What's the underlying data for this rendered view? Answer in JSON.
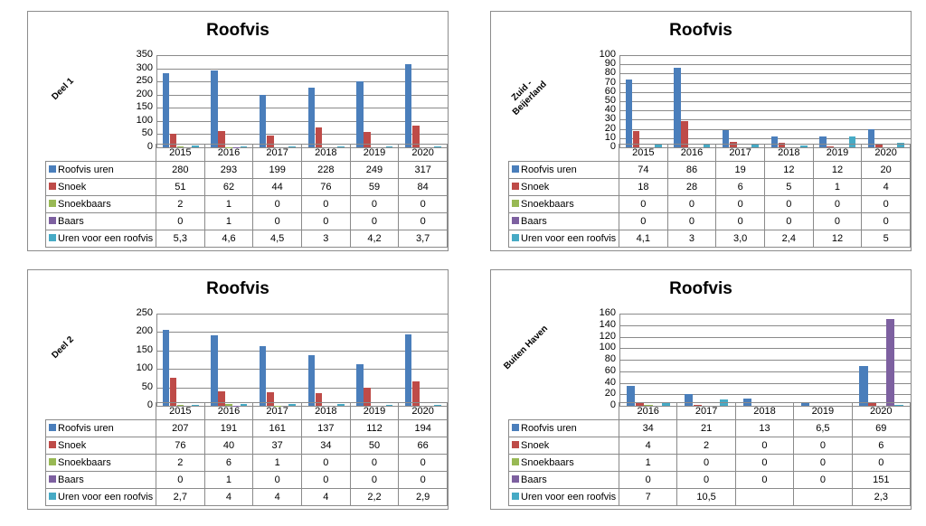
{
  "colors": {
    "Roofvis uren": "#4a7ebb",
    "Snoek": "#be4b48",
    "Snoekbaars": "#98b954",
    "Baars": "#7d60a0",
    "Uren voor een roofvis": "#46aac5"
  },
  "chart_data": [
    {
      "type": "bar",
      "title": "Roofvis",
      "side_label": "Deel 1",
      "ylim": [
        0,
        350
      ],
      "yticks": [
        "0",
        "50",
        "100",
        "150",
        "200",
        "250",
        "300",
        "350"
      ],
      "categories": [
        "2015",
        "2016",
        "2017",
        "2018",
        "2019",
        "2020"
      ],
      "series": [
        {
          "name": "Roofvis uren",
          "values": [
            280,
            293,
            199,
            228,
            249,
            317
          ],
          "labels": [
            "280",
            "293",
            "199",
            "228",
            "249",
            "317"
          ]
        },
        {
          "name": "Snoek",
          "values": [
            51,
            62,
            44,
            76,
            59,
            84
          ],
          "labels": [
            "51",
            "62",
            "44",
            "76",
            "59",
            "84"
          ]
        },
        {
          "name": "Snoekbaars",
          "values": [
            2,
            1,
            0,
            0,
            0,
            0
          ],
          "labels": [
            "2",
            "1",
            "0",
            "0",
            "0",
            "0"
          ]
        },
        {
          "name": "Baars",
          "values": [
            0,
            1,
            0,
            0,
            0,
            0
          ],
          "labels": [
            "0",
            "1",
            "0",
            "0",
            "0",
            "0"
          ]
        },
        {
          "name": "Uren voor een roofvis",
          "values": [
            5.3,
            4.6,
            4.5,
            3,
            4.2,
            3.7
          ],
          "labels": [
            "5,3",
            "4,6",
            "4,5",
            "3",
            "4,2",
            "3,7"
          ]
        }
      ]
    },
    {
      "type": "bar",
      "title": "Roofvis",
      "side_label": "Zuid - Beijerland",
      "ylim": [
        0,
        100
      ],
      "yticks": [
        "0",
        "10",
        "20",
        "30",
        "40",
        "50",
        "60",
        "70",
        "80",
        "90",
        "100"
      ],
      "categories": [
        "2015",
        "2016",
        "2017",
        "2018",
        "2019",
        "2020"
      ],
      "series": [
        {
          "name": "Roofvis uren",
          "values": [
            74,
            86,
            19,
            12,
            12,
            20
          ],
          "labels": [
            "74",
            "86",
            "19",
            "12",
            "12",
            "20"
          ]
        },
        {
          "name": "Snoek",
          "values": [
            18,
            28,
            6,
            5,
            1,
            4
          ],
          "labels": [
            "18",
            "28",
            "6",
            "5",
            "1",
            "4"
          ]
        },
        {
          "name": "Snoekbaars",
          "values": [
            0,
            0,
            0,
            0,
            0,
            0
          ],
          "labels": [
            "0",
            "0",
            "0",
            "0",
            "0",
            "0"
          ]
        },
        {
          "name": "Baars",
          "values": [
            0,
            0,
            0,
            0,
            0,
            0
          ],
          "labels": [
            "0",
            "0",
            "0",
            "0",
            "0",
            "0"
          ]
        },
        {
          "name": "Uren voor een roofvis",
          "values": [
            4.1,
            3,
            3.0,
            2.4,
            12,
            5
          ],
          "labels": [
            "4,1",
            "3",
            "3,0",
            "2,4",
            "12",
            "5"
          ]
        }
      ]
    },
    {
      "type": "bar",
      "title": "Roofvis",
      "side_label": "Deel 2",
      "ylim": [
        0,
        250
      ],
      "yticks": [
        "0",
        "50",
        "100",
        "150",
        "200",
        "250"
      ],
      "categories": [
        "2015",
        "2016",
        "2017",
        "2018",
        "2019",
        "2020"
      ],
      "series": [
        {
          "name": "Roofvis uren",
          "values": [
            207,
            191,
            161,
            137,
            112,
            194
          ],
          "labels": [
            "207",
            "191",
            "161",
            "137",
            "112",
            "194"
          ]
        },
        {
          "name": "Snoek",
          "values": [
            76,
            40,
            37,
            34,
            50,
            66
          ],
          "labels": [
            "76",
            "40",
            "37",
            "34",
            "50",
            "66"
          ]
        },
        {
          "name": "Snoekbaars",
          "values": [
            2,
            6,
            1,
            0,
            0,
            0
          ],
          "labels": [
            "2",
            "6",
            "1",
            "0",
            "0",
            "0"
          ]
        },
        {
          "name": "Baars",
          "values": [
            0,
            1,
            0,
            0,
            0,
            0
          ],
          "labels": [
            "0",
            "1",
            "0",
            "0",
            "0",
            "0"
          ]
        },
        {
          "name": "Uren voor een roofvis",
          "values": [
            2.7,
            4,
            4,
            4,
            2.2,
            2.9
          ],
          "labels": [
            "2,7",
            "4",
            "4",
            "4",
            "2,2",
            "2,9"
          ]
        }
      ]
    },
    {
      "type": "bar",
      "title": "Roofvis",
      "side_label": "Buiten Haven",
      "ylim": [
        0,
        160
      ],
      "yticks": [
        "0",
        "20",
        "40",
        "60",
        "80",
        "100",
        "120",
        "140",
        "160"
      ],
      "categories": [
        "2016",
        "2017",
        "2018",
        "2019",
        "2020"
      ],
      "series": [
        {
          "name": "Roofvis uren",
          "values": [
            34,
            21,
            13,
            6.5,
            69
          ],
          "labels": [
            "34",
            "21",
            "13",
            "6,5",
            "69"
          ]
        },
        {
          "name": "Snoek",
          "values": [
            4,
            2,
            0,
            0,
            6
          ],
          "labels": [
            "4",
            "2",
            "0",
            "0",
            "6"
          ]
        },
        {
          "name": "Snoekbaars",
          "values": [
            1,
            0,
            0,
            0,
            0
          ],
          "labels": [
            "1",
            "0",
            "0",
            "0",
            "0"
          ]
        },
        {
          "name": "Baars",
          "values": [
            0,
            0,
            0,
            0,
            151
          ],
          "labels": [
            "0",
            "0",
            "0",
            "0",
            "151"
          ]
        },
        {
          "name": "Uren voor een roofvis",
          "values": [
            7,
            10.5,
            null,
            null,
            2.3
          ],
          "labels": [
            "7",
            "10,5",
            "",
            "",
            "2,3"
          ]
        }
      ]
    }
  ]
}
